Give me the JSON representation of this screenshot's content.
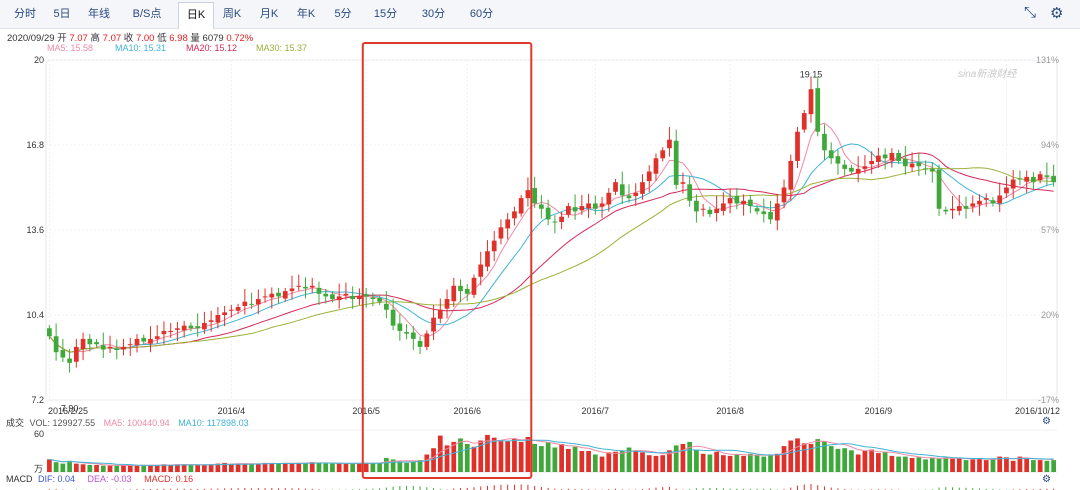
{
  "toolbar": {
    "tabs": [
      {
        "label": "分时"
      },
      {
        "label": "5日"
      },
      {
        "label": "年线"
      },
      {
        "label": "B/S点"
      },
      {
        "label": "日K",
        "active": true
      },
      {
        "label": "周K"
      },
      {
        "label": "月K"
      },
      {
        "label": "年K"
      },
      {
        "label": "5分"
      },
      {
        "label": "15分"
      },
      {
        "label": "30分"
      },
      {
        "label": "60分"
      }
    ],
    "icons": [
      "shrink-icon",
      "settings-icon"
    ]
  },
  "quote": {
    "date": "2020/09/29",
    "open_label": "开",
    "open": "7.07",
    "high_label": "高",
    "high": "7.07",
    "close_label": "收",
    "close": "7.00",
    "low_label": "低",
    "low": "6.98",
    "vol_label": "量",
    "vol": "6079",
    "change": "0.72%"
  },
  "ma_legend": [
    {
      "text": "MA5: 15.58",
      "color": "#f08aa6"
    },
    {
      "text": "MA10: 15.31",
      "color": "#3fb4d6"
    },
    {
      "text": "MA20: 15.12",
      "color": "#d42a5a"
    },
    {
      "text": "MA30: 15.37",
      "color": "#9bb13a"
    }
  ],
  "watermark": "sina新浪财经",
  "volume_panel": {
    "title": "成交",
    "unit": "万",
    "vol": "VOL: 129927.55",
    "ma5": "MA5: 100440.94",
    "ma10": "MA10: 117898.03",
    "ytop": "60"
  },
  "macd_panel": {
    "title": "MACD",
    "dif": "DIF: 0.04",
    "dea": "DEA: -0.03",
    "macd": "MACD: 0.16",
    "ytop": "1"
  },
  "colors": {
    "up": "#e0302a",
    "down": "#3fa83a",
    "highlight_box": "#e0392b",
    "ma5": "#f08aa6",
    "ma10": "#3fb4d6",
    "ma20": "#d42a5a",
    "ma30": "#9bb13a"
  },
  "chart_data": {
    "type": "candlestick",
    "y_range": [
      7.2,
      20
    ],
    "y_ticks": [
      "20",
      "16.8",
      "13.6",
      "10.4",
      "7.2"
    ],
    "pct_ticks": [
      "131%",
      "94%",
      "57%",
      "20%",
      "-17%"
    ],
    "x_ticks": [
      {
        "label": "2016/2/25",
        "index": 0
      },
      {
        "label": "2016/4",
        "index": 27
      },
      {
        "label": "2016/5",
        "index": 47
      },
      {
        "label": "2016/6",
        "index": 62
      },
      {
        "label": "2016/7",
        "index": 81
      },
      {
        "label": "2016/8",
        "index": 101
      },
      {
        "label": "2016/9",
        "index": 123
      },
      {
        "label": "2016/10/12",
        "index": 142
      }
    ],
    "annotations": [
      {
        "text": "19.15",
        "index": 113,
        "value": 19.15,
        "position": "above"
      },
      {
        "text": "7.90",
        "index": 3,
        "value": 7.9,
        "position": "below"
      }
    ],
    "highlight_range": [
      47,
      71
    ],
    "close": [
      9.6,
      9.0,
      8.8,
      8.6,
      9.2,
      9.5,
      9.3,
      9.3,
      9.1,
      9.2,
      9.1,
      9.2,
      9.3,
      9.5,
      9.4,
      9.5,
      9.6,
      9.8,
      9.8,
      9.9,
      10.0,
      9.9,
      9.9,
      10.1,
      10.2,
      10.4,
      10.5,
      10.6,
      10.7,
      10.9,
      10.8,
      11.0,
      11.1,
      11.2,
      11.1,
      11.3,
      11.4,
      11.5,
      11.4,
      11.5,
      11.2,
      11.1,
      11.0,
      11.1,
      11.2,
      11.0,
      11.1,
      11.1,
      11.0,
      10.9,
      10.6,
      10.0,
      9.8,
      9.7,
      9.5,
      9.2,
      9.7,
      10.3,
      10.6,
      11.0,
      11.5,
      11.3,
      11.2,
      11.8,
      12.3,
      12.8,
      13.2,
      13.7,
      14.0,
      14.3,
      14.8,
      15.1,
      14.6,
      14.4,
      14.0,
      13.9,
      14.1,
      14.5,
      14.3,
      14.5,
      14.6,
      14.4,
      14.6,
      15.0,
      15.4,
      14.9,
      14.8,
      15.0,
      15.4,
      15.8,
      16.3,
      16.6,
      17.0,
      15.3,
      15.4,
      14.7,
      14.3,
      14.4,
      14.2,
      14.4,
      14.6,
      14.8,
      14.6,
      14.7,
      14.5,
      14.3,
      14.2,
      14.0,
      14.6,
      15.2,
      16.2,
      17.3,
      18.0,
      18.9,
      17.3,
      16.6,
      16.3,
      16.1,
      15.9,
      15.8,
      15.9,
      16.0,
      16.2,
      16.4,
      16.3,
      16.5,
      16.2,
      16.0,
      16.1,
      16.0,
      15.9,
      15.8,
      14.4,
      14.3,
      14.4,
      14.5,
      14.4,
      14.6,
      14.7,
      14.8,
      14.6,
      14.9,
      15.2,
      15.5,
      15.5,
      15.6,
      15.4,
      15.7,
      15.6,
      15.4
    ],
    "volume": [
      18,
      14,
      12,
      16,
      12,
      11,
      10,
      10,
      9,
      9,
      9,
      10,
      10,
      9,
      9,
      10,
      10,
      11,
      10,
      11,
      11,
      10,
      10,
      10,
      11,
      12,
      13,
      11,
      12,
      12,
      11,
      12,
      13,
      13,
      12,
      13,
      12,
      13,
      13,
      14,
      13,
      12,
      12,
      12,
      12,
      12,
      13,
      13,
      13,
      13,
      20,
      18,
      15,
      13,
      15,
      17,
      25,
      34,
      52,
      38,
      43,
      48,
      40,
      36,
      45,
      53,
      49,
      44,
      45,
      48,
      43,
      50,
      40,
      37,
      42,
      35,
      40,
      33,
      36,
      30,
      30,
      25,
      22,
      28,
      29,
      30,
      35,
      31,
      28,
      24,
      23,
      24,
      31,
      38,
      40,
      43,
      32,
      26,
      25,
      29,
      24,
      23,
      25,
      23,
      26,
      24,
      22,
      24,
      26,
      37,
      45,
      48,
      41,
      40,
      47,
      44,
      37,
      33,
      34,
      31,
      25,
      30,
      32,
      27,
      29,
      23,
      22,
      22,
      20,
      21,
      18,
      20,
      19,
      21,
      19,
      20,
      17,
      18,
      20,
      17,
      18,
      22,
      21,
      16,
      22,
      20,
      17,
      17,
      16,
      17
    ],
    "macd": [
      0.1,
      0.1,
      0.05,
      0,
      -0.05,
      -0.03,
      0,
      0.02,
      0.03,
      0.04,
      0.05,
      0.06,
      0.08,
      0.1,
      0.1,
      0.12,
      0.13,
      0.15,
      0.14,
      0.15,
      0.16,
      0.14,
      0.12,
      0.14,
      0.16,
      0.18,
      0.2,
      0.21,
      0.22,
      0.24,
      0.2,
      0.22,
      0.23,
      0.24,
      0.2,
      0.22,
      0.21,
      0.2,
      0.17,
      0.14,
      0.08,
      0.02,
      -0.03,
      -0.05,
      -0.05,
      -0.08,
      -0.1,
      -0.13,
      -0.16,
      -0.2,
      -0.3,
      -0.42,
      -0.5,
      -0.52,
      -0.5,
      -0.45,
      -0.35,
      -0.22,
      -0.1,
      0.05,
      0.18,
      0.22,
      0.26,
      0.35,
      0.44,
      0.52,
      0.6,
      0.65,
      0.66,
      0.68,
      0.7,
      0.65,
      0.5,
      0.38,
      0.26,
      0.16,
      0.12,
      0.15,
      0.12,
      0.12,
      0.1,
      0.06,
      0.05,
      0.1,
      0.15,
      0.08,
      0.05,
      0.06,
      0.12,
      0.2,
      0.3,
      0.36,
      0.4,
      0.15,
      0.05,
      -0.1,
      -0.2,
      -0.22,
      -0.25,
      -0.24,
      -0.2,
      -0.16,
      -0.16,
      -0.14,
      -0.14,
      -0.15,
      -0.15,
      -0.16,
      -0.05,
      0.1,
      0.3,
      0.55,
      0.7,
      0.82,
      0.6,
      0.45,
      0.3,
      0.2,
      0.12,
      0.06,
      0.05,
      0.05,
      0.08,
      0.1,
      0.08,
      0.08,
      0.04,
      0,
      -0.02,
      -0.04,
      -0.06,
      -0.08,
      -0.3,
      -0.36,
      -0.34,
      -0.3,
      -0.28,
      -0.22,
      -0.18,
      -0.14,
      -0.12,
      -0.06,
      0.02,
      0.08,
      0.1,
      0.12,
      0.1,
      0.14,
      0.14,
      0.16
    ]
  }
}
